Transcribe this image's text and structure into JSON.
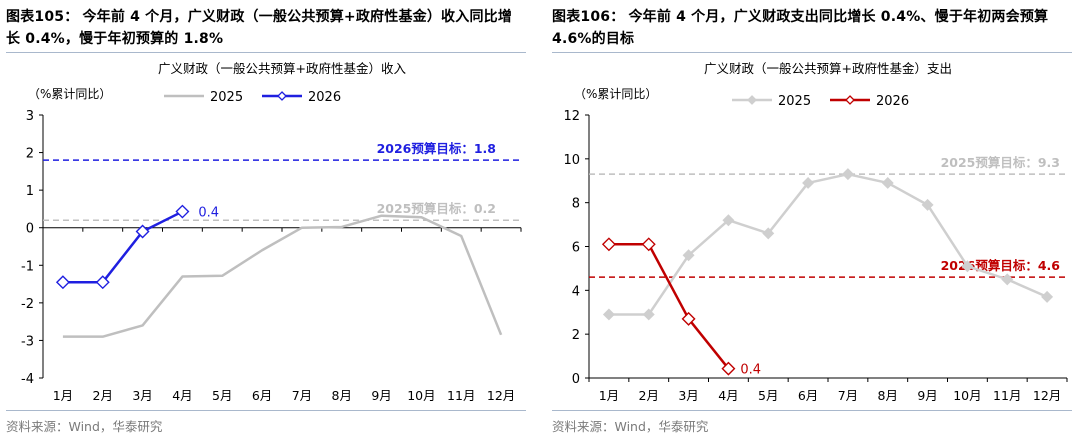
{
  "panels": [
    {
      "fig_label": "图表105：",
      "fig_title": "今年前 4 个月，广义财政（一般公共预算+政府性基金）收入同比增长 0.4%，慢于年初预算的 1.8%",
      "source": "资料来源：Wind，华泰研究"
    },
    {
      "fig_label": "图表106：",
      "fig_title": "今年前 4 个月，广义财政支出同比增长 0.4%、慢于年初两会预算 4.6%的目标",
      "source": "资料来源：Wind，华泰研究"
    }
  ],
  "chart_data": [
    {
      "type": "line",
      "title": "广义财政（一般公共预算+政府性基金）收入",
      "ylabel": "（%累计同比）",
      "categories": [
        "1月",
        "2月",
        "3月",
        "4月",
        "5月",
        "6月",
        "7月",
        "8月",
        "9月",
        "10月",
        "11月",
        "12月"
      ],
      "ylim": [
        -4,
        3
      ],
      "yticks": [
        3,
        2,
        1,
        0,
        -1,
        -2,
        -3,
        -4
      ],
      "series": [
        {
          "name": "2025",
          "color": "#bfbfbf",
          "marker": "none",
          "values": [
            -2.9,
            -2.9,
            -2.6,
            -1.3,
            -1.28,
            -0.6,
            0.0,
            0.02,
            0.32,
            0.28,
            -0.22,
            -2.85
          ]
        },
        {
          "name": "2026",
          "color": "#1f1fe0",
          "marker": "diamond",
          "values": [
            -1.45,
            -1.45,
            -0.1,
            0.43,
            null,
            null,
            null,
            null,
            null,
            null,
            null,
            null
          ]
        }
      ],
      "reference_lines": [
        {
          "value": 1.8,
          "color": "#1f1fe0",
          "label": "2026预算目标：1.8"
        },
        {
          "value": 0.2,
          "color": "#bfbfbf",
          "label": "2025预算目标：0.2"
        }
      ],
      "annotations": [
        {
          "text": "0.4",
          "color": "#1f1fe0"
        }
      ]
    },
    {
      "type": "line",
      "title": "广义财政（一般公共预算+政府性基金）支出",
      "ylabel": "（%累计同比）",
      "categories": [
        "1月",
        "2月",
        "3月",
        "4月",
        "5月",
        "6月",
        "7月",
        "8月",
        "9月",
        "10月",
        "11月",
        "12月"
      ],
      "ylim": [
        0,
        12
      ],
      "yticks": [
        12,
        10,
        8,
        6,
        4,
        2,
        0
      ],
      "series": [
        {
          "name": "2025",
          "color": "#cfcfcf",
          "marker": "diamond-filled",
          "values": [
            2.9,
            2.9,
            5.6,
            7.2,
            6.6,
            8.9,
            9.3,
            8.9,
            7.9,
            5.1,
            4.5,
            3.7
          ]
        },
        {
          "name": "2026",
          "color": "#c00000",
          "marker": "diamond",
          "values": [
            6.1,
            6.1,
            2.7,
            0.43,
            null,
            null,
            null,
            null,
            null,
            null,
            null,
            null
          ]
        }
      ],
      "reference_lines": [
        {
          "value": 9.3,
          "color": "#bfbfbf",
          "label": "2025预算目标：9.3"
        },
        {
          "value": 4.6,
          "color": "#c00000",
          "label": "2026预算目标：4.6"
        }
      ],
      "annotations": [
        {
          "text": "0.4",
          "color": "#c00000"
        }
      ]
    }
  ]
}
